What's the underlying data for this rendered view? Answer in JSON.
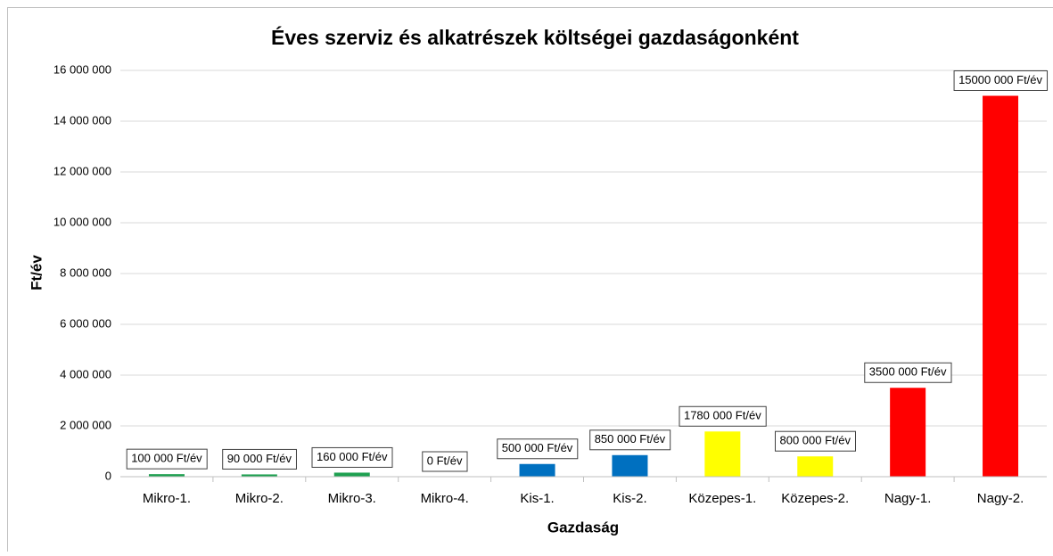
{
  "chart_data": {
    "type": "bar",
    "title": "Éves szerviz és alkatrészek költségei gazdaságonként",
    "x_label": "Gazdaság",
    "y_label": "Ft/év",
    "categories": [
      "Mikro-1.",
      "Mikro-2.",
      "Mikro-3.",
      "Mikro-4.",
      "Kis-1.",
      "Kis-2.",
      "Közepes-1.",
      "Közepes-2.",
      "Nagy-1.",
      "Nagy-2."
    ],
    "values": [
      100000,
      90000,
      160000,
      0,
      500000,
      850000,
      1780000,
      800000,
      3500000,
      15000000
    ],
    "value_labels": [
      "100 000 Ft/év",
      "90 000 Ft/év",
      "160 000 Ft/év",
      "0 Ft/év",
      "500 000 Ft/év",
      "850 000 Ft/év",
      "1780 000 Ft/év",
      "800 000 Ft/év",
      "3500 000 Ft/év",
      "15000 000 Ft/év"
    ],
    "colors": [
      "#1ea050",
      "#1ea050",
      "#1ea050",
      "#1ea050",
      "#0070c0",
      "#0070c0",
      "#ffff00",
      "#ffff00",
      "#ff0000",
      "#ff0000"
    ],
    "ylim": [
      0,
      16000000
    ],
    "yticks": [
      0,
      {
        "value": 2000000,
        "label": "2 000 000"
      },
      {
        "value": 4000000,
        "label": "4 000 000"
      },
      {
        "value": 6000000,
        "label": "6 000 000"
      },
      {
        "value": 8000000,
        "label": "8 000 000"
      },
      {
        "value": 10000000,
        "label": "10 000 000"
      },
      {
        "value": 12000000,
        "label": "12 000 000"
      },
      {
        "value": 14000000,
        "label": "14 000 000"
      },
      {
        "value": 16000000,
        "label": "16 000 000"
      }
    ],
    "grid": true
  }
}
